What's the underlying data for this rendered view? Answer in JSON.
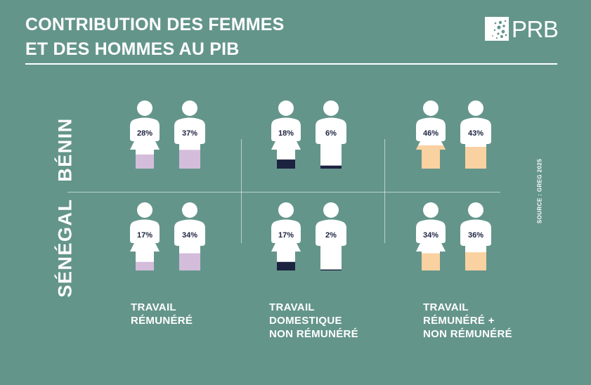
{
  "title": {
    "line1": "CONTRIBUTION DES FEMMES",
    "line2": "ET DES HOMMES AU PIB"
  },
  "logo": {
    "text": "PRB"
  },
  "source": "SOURCE : GREG 2025",
  "colors": {
    "background": "#64958b",
    "figure": "#ffffff",
    "paid": "#d3bddb",
    "domestic": "#1c2340",
    "total": "#fad1a0",
    "label_text": "#1c2340"
  },
  "chart_data": {
    "type": "pictograph",
    "rows": [
      "BÉNIN",
      "SÉNÉGAL"
    ],
    "columns": [
      {
        "key": "paid",
        "label_lines": [
          "TRAVAIL",
          "RÉMUNÉRÉ"
        ]
      },
      {
        "key": "domestic",
        "label_lines": [
          "TRAVAIL",
          "DOMESTIQUE",
          "NON RÉMUNÉRÉ"
        ]
      },
      {
        "key": "total",
        "label_lines": [
          "TRAVAIL",
          "RÉMUNÉRÉ +",
          "NON RÉMUNÉRÉ"
        ]
      }
    ],
    "values": [
      [
        {
          "female": 28,
          "male": 37
        },
        {
          "female": 18,
          "male": 6
        },
        {
          "female": 46,
          "male": 43
        }
      ],
      [
        {
          "female": 17,
          "male": 34
        },
        {
          "female": 17,
          "male": 2
        },
        {
          "female": 34,
          "male": 36
        }
      ]
    ],
    "unit": "%"
  }
}
